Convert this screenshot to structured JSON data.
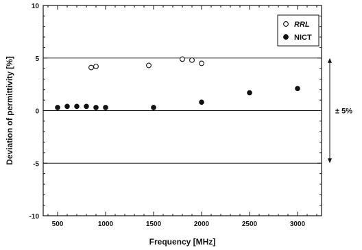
{
  "chart_data": {
    "type": "scatter",
    "xlabel": "Frequency [MHz]",
    "ylabel": "Deviation of permittivity [%]",
    "xlim": [
      350,
      3250
    ],
    "ylim": [
      -10,
      10
    ],
    "x_ticks": [
      500,
      1000,
      1500,
      2000,
      2500,
      3000
    ],
    "y_ticks": [
      -10,
      -5,
      0,
      5,
      10
    ],
    "reference_lines": [
      5,
      0,
      -5
    ],
    "grid": false,
    "legend_position": "top-right",
    "series": [
      {
        "name": "RRL",
        "marker": "open-circle",
        "x": [
          850,
          900,
          1450,
          1800,
          1900,
          2000
        ],
        "y": [
          4.1,
          4.2,
          4.3,
          4.9,
          4.8,
          4.5
        ]
      },
      {
        "name": "NICT",
        "marker": "filled-circle",
        "x": [
          500,
          600,
          700,
          800,
          900,
          1000,
          1500,
          2000,
          2500,
          3000
        ],
        "y": [
          0.3,
          0.4,
          0.4,
          0.4,
          0.3,
          0.3,
          0.3,
          0.8,
          1.7,
          2.1
        ]
      }
    ],
    "annotation": {
      "text": "± 5%"
    }
  }
}
